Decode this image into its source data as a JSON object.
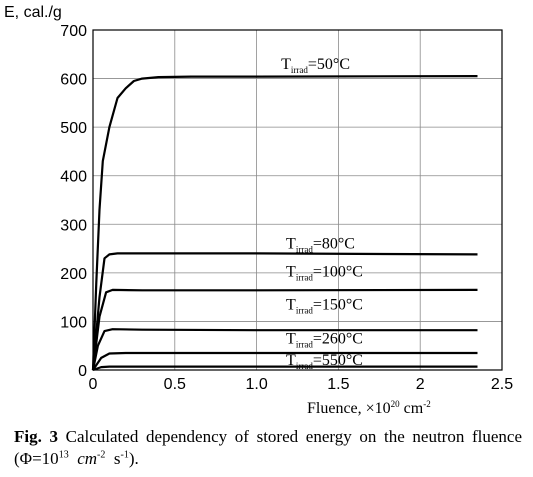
{
  "chart_data": {
    "type": "line",
    "ylabel": "E, cal./g",
    "xlabel": "Fluence, ×10",
    "xlabel_exp": "20",
    "xlabel_unit": " cm",
    "xlabel_unit_exp": "-2",
    "xlim": [
      0,
      2.5
    ],
    "ylim": [
      0,
      700
    ],
    "x_ticks": [
      0,
      0.5,
      1.0,
      1.5,
      2.0,
      2.5
    ],
    "x_tick_labels": [
      "0",
      "0.5",
      "1.0",
      "1.5",
      "2",
      "2.5"
    ],
    "y_ticks": [
      0,
      100,
      200,
      300,
      400,
      500,
      600,
      700
    ],
    "y_tick_labels": [
      "0",
      "100",
      "200",
      "300",
      "400",
      "500",
      "600",
      "700"
    ],
    "grid": true,
    "series": [
      {
        "name": "T irrad=50°C",
        "label_main": "T",
        "label_sub": "irrad",
        "label_tail": "=50°C",
        "label_at": [
          1.15,
          620
        ],
        "points": [
          [
            0,
            0
          ],
          [
            0.02,
            180
          ],
          [
            0.04,
            330
          ],
          [
            0.06,
            430
          ],
          [
            0.1,
            500
          ],
          [
            0.15,
            560
          ],
          [
            0.2,
            580
          ],
          [
            0.25,
            595
          ],
          [
            0.3,
            600
          ],
          [
            0.4,
            603
          ],
          [
            0.6,
            604
          ],
          [
            1.0,
            604
          ],
          [
            2.35,
            605
          ]
        ]
      },
      {
        "name": "T irrad=80°C",
        "label_main": "T",
        "label_sub": "irrad",
        "label_tail": "=80°C",
        "label_at": [
          1.18,
          250
        ],
        "points": [
          [
            0,
            0
          ],
          [
            0.04,
            150
          ],
          [
            0.07,
            230
          ],
          [
            0.1,
            238
          ],
          [
            0.15,
            240
          ],
          [
            0.5,
            240
          ],
          [
            1.0,
            240
          ],
          [
            2.35,
            238
          ]
        ]
      },
      {
        "name": "T irrad=100°C",
        "label_main": "T",
        "label_sub": "irrad",
        "label_tail": "=100°C",
        "label_at": [
          1.18,
          193
        ],
        "points": [
          [
            0,
            0
          ],
          [
            0.04,
            110
          ],
          [
            0.08,
            160
          ],
          [
            0.12,
            165
          ],
          [
            0.3,
            164
          ],
          [
            1.0,
            164
          ],
          [
            2.35,
            165
          ]
        ]
      },
      {
        "name": "T irrad=150°C",
        "label_main": "T",
        "label_sub": "irrad",
        "label_tail": "=150°C",
        "label_at": [
          1.18,
          125
        ],
        "points": [
          [
            0,
            0
          ],
          [
            0.03,
            50
          ],
          [
            0.07,
            80
          ],
          [
            0.12,
            84
          ],
          [
            0.3,
            83
          ],
          [
            1.0,
            82
          ],
          [
            2.35,
            82
          ]
        ]
      },
      {
        "name": "T irrad=260°C",
        "label_main": "T",
        "label_sub": "irrad",
        "label_tail": "=260°C",
        "label_at": [
          1.18,
          55
        ],
        "points": [
          [
            0,
            0
          ],
          [
            0.05,
            25
          ],
          [
            0.1,
            34
          ],
          [
            0.2,
            35
          ],
          [
            1.0,
            35
          ],
          [
            2.35,
            35
          ]
        ]
      },
      {
        "name": "T irrad=550°C",
        "label_main": "T",
        "label_sub": "irrad",
        "label_tail": "=550°C",
        "label_at": [
          1.18,
          10
        ],
        "points": [
          [
            0,
            0
          ],
          [
            0.05,
            6
          ],
          [
            0.1,
            7
          ],
          [
            1.0,
            7
          ],
          [
            2.35,
            7
          ]
        ]
      }
    ]
  },
  "caption": {
    "fig_label": "Fig. 3",
    "text": " Calculated dependency of stored energy on the neutron fluence (Φ=10",
    "exp1": "13",
    "units": "cm",
    "exp2": "-2",
    "mid": "s",
    "exp3": "-1",
    "tail": ")."
  }
}
